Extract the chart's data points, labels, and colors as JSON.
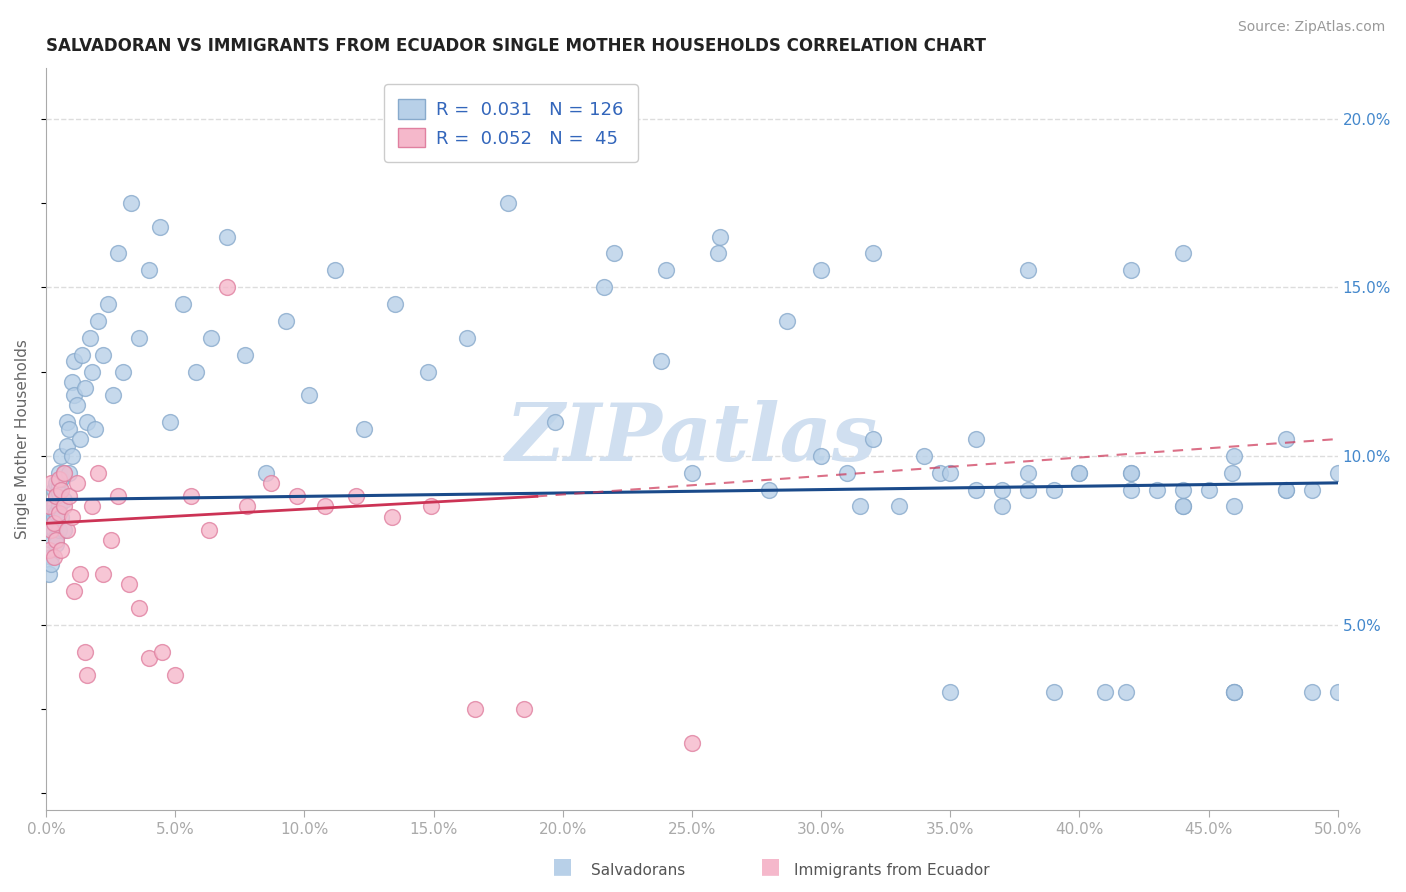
{
  "title": "SALVADORAN VS IMMIGRANTS FROM ECUADOR SINGLE MOTHER HOUSEHOLDS CORRELATION CHART",
  "source": "Source: ZipAtlas.com",
  "ylabel": "Single Mother Households",
  "blue_r": 0.031,
  "blue_n": 126,
  "pink_r": 0.052,
  "pink_n": 45,
  "blue_color": "#b8d0e8",
  "blue_edge": "#88aacc",
  "pink_color": "#f5b8cb",
  "pink_edge": "#e080a0",
  "blue_line_color": "#1a4a8a",
  "pink_line_color": "#cc3355",
  "watermark_text": "ZIPatlas",
  "watermark_color": "#d0dff0",
  "xlim": [
    0.0,
    0.5
  ],
  "ylim": [
    -0.005,
    0.215
  ],
  "xticks": [
    0.0,
    0.05,
    0.1,
    0.15,
    0.2,
    0.25,
    0.3,
    0.35,
    0.4,
    0.45,
    0.5
  ],
  "xtick_labels": [
    "0.0%",
    "5.0%",
    "10.0%",
    "15.0%",
    "20.0%",
    "25.0%",
    "30.0%",
    "35.0%",
    "40.0%",
    "45.0%",
    "50.0%"
  ],
  "yticks": [
    0.05,
    0.1,
    0.15,
    0.2
  ],
  "ytick_labels": [
    "5.0%",
    "10.0%",
    "15.0%",
    "20.0%"
  ],
  "title_color": "#222222",
  "axis_color": "#aaaaaa",
  "grid_color": "#dddddd",
  "tick_label_color": "#888888",
  "right_tick_color": "#4488cc",
  "legend_text_color": "#3366bb",
  "bottom_legend_color": "#555555",
  "blue_x": [
    0.001,
    0.001,
    0.001,
    0.001,
    0.002,
    0.002,
    0.002,
    0.002,
    0.003,
    0.003,
    0.003,
    0.003,
    0.004,
    0.004,
    0.004,
    0.004,
    0.004,
    0.005,
    0.005,
    0.005,
    0.005,
    0.005,
    0.006,
    0.006,
    0.006,
    0.007,
    0.007,
    0.007,
    0.008,
    0.008,
    0.009,
    0.009,
    0.01,
    0.01,
    0.011,
    0.011,
    0.012,
    0.013,
    0.014,
    0.015,
    0.016,
    0.017,
    0.018,
    0.019,
    0.02,
    0.022,
    0.024,
    0.026,
    0.028,
    0.03,
    0.033,
    0.036,
    0.04,
    0.044,
    0.048,
    0.053,
    0.058,
    0.064,
    0.07,
    0.077,
    0.085,
    0.093,
    0.102,
    0.112,
    0.123,
    0.135,
    0.148,
    0.163,
    0.179,
    0.197,
    0.216,
    0.238,
    0.261,
    0.287,
    0.315,
    0.346,
    0.38,
    0.418,
    0.459,
    0.46,
    0.24,
    0.26,
    0.3,
    0.32,
    0.35,
    0.37,
    0.22,
    0.25,
    0.28,
    0.31,
    0.33,
    0.36,
    0.39,
    0.41,
    0.42,
    0.43,
    0.44,
    0.45,
    0.46,
    0.3,
    0.32,
    0.34,
    0.36,
    0.38,
    0.4,
    0.42,
    0.44,
    0.46,
    0.48,
    0.49,
    0.42,
    0.44,
    0.46,
    0.48,
    0.49,
    0.5,
    0.38,
    0.4,
    0.42,
    0.44,
    0.46,
    0.48,
    0.5,
    0.35,
    0.37,
    0.39
  ],
  "blue_y": [
    0.072,
    0.065,
    0.078,
    0.083,
    0.07,
    0.075,
    0.08,
    0.068,
    0.085,
    0.09,
    0.078,
    0.082,
    0.088,
    0.076,
    0.092,
    0.083,
    0.074,
    0.091,
    0.078,
    0.085,
    0.095,
    0.089,
    0.082,
    0.1,
    0.093,
    0.087,
    0.095,
    0.078,
    0.103,
    0.11,
    0.095,
    0.108,
    0.122,
    0.1,
    0.118,
    0.128,
    0.115,
    0.105,
    0.13,
    0.12,
    0.11,
    0.135,
    0.125,
    0.108,
    0.14,
    0.13,
    0.145,
    0.118,
    0.16,
    0.125,
    0.175,
    0.135,
    0.155,
    0.168,
    0.11,
    0.145,
    0.125,
    0.135,
    0.165,
    0.13,
    0.095,
    0.14,
    0.118,
    0.155,
    0.108,
    0.145,
    0.125,
    0.135,
    0.175,
    0.11,
    0.15,
    0.128,
    0.165,
    0.14,
    0.085,
    0.095,
    0.095,
    0.03,
    0.095,
    0.03,
    0.155,
    0.16,
    0.1,
    0.105,
    0.03,
    0.09,
    0.16,
    0.095,
    0.09,
    0.095,
    0.085,
    0.09,
    0.03,
    0.03,
    0.095,
    0.09,
    0.085,
    0.09,
    0.03,
    0.155,
    0.16,
    0.1,
    0.105,
    0.09,
    0.095,
    0.095,
    0.09,
    0.085,
    0.09,
    0.03,
    0.155,
    0.16,
    0.1,
    0.105,
    0.09,
    0.095,
    0.155,
    0.095,
    0.09,
    0.085,
    0.03,
    0.09,
    0.03,
    0.095,
    0.085,
    0.09
  ],
  "pink_x": [
    0.001,
    0.001,
    0.002,
    0.002,
    0.003,
    0.003,
    0.004,
    0.004,
    0.005,
    0.005,
    0.006,
    0.006,
    0.007,
    0.007,
    0.008,
    0.009,
    0.01,
    0.011,
    0.012,
    0.013,
    0.015,
    0.016,
    0.018,
    0.02,
    0.022,
    0.025,
    0.028,
    0.032,
    0.036,
    0.04,
    0.045,
    0.05,
    0.056,
    0.063,
    0.07,
    0.078,
    0.087,
    0.097,
    0.108,
    0.12,
    0.134,
    0.149,
    0.166,
    0.185,
    0.25
  ],
  "pink_y": [
    0.085,
    0.072,
    0.078,
    0.092,
    0.08,
    0.07,
    0.088,
    0.075,
    0.093,
    0.083,
    0.09,
    0.072,
    0.095,
    0.085,
    0.078,
    0.088,
    0.082,
    0.06,
    0.092,
    0.065,
    0.042,
    0.035,
    0.085,
    0.095,
    0.065,
    0.075,
    0.088,
    0.062,
    0.055,
    0.04,
    0.042,
    0.035,
    0.088,
    0.078,
    0.15,
    0.085,
    0.092,
    0.088,
    0.085,
    0.088,
    0.082,
    0.085,
    0.025,
    0.025,
    0.015
  ]
}
